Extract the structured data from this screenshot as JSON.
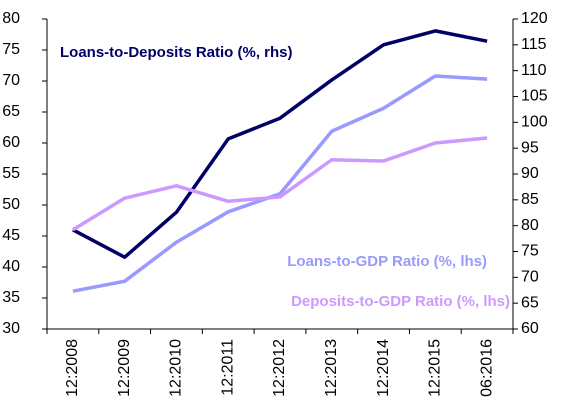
{
  "chart_data": {
    "type": "line",
    "categories": [
      "12:2008",
      "12:2009",
      "12:2010",
      "12:2011",
      "12:2012",
      "12:2013",
      "12:2014",
      "12:2015",
      "06:2016"
    ],
    "series": [
      {
        "name": "Loans-to-Deposits Ratio (%, rhs)",
        "color": "#000066",
        "axis": "y2",
        "values": [
          79.2,
          73.9,
          82.6,
          96.8,
          100.8,
          108.2,
          115.0,
          117.7,
          115.7
        ]
      },
      {
        "name": "Loans-to-GDP Ratio (%, lhs)",
        "color": "#9999ff",
        "values": [
          36.1,
          37.7,
          44.0,
          48.9,
          51.8,
          61.9,
          65.6,
          70.8,
          70.3
        ]
      },
      {
        "name": "Deposits-to-GDP Ratio (%, lhs)",
        "color": "#cc99ff",
        "values": [
          46.0,
          51.1,
          53.1,
          50.6,
          51.3,
          57.3,
          57.1,
          60.0,
          60.8
        ]
      }
    ],
    "ylim": [
      30,
      80
    ],
    "yticks": [
      30,
      35,
      40,
      45,
      50,
      55,
      60,
      65,
      70,
      75,
      80
    ],
    "y2lim": [
      60,
      120
    ],
    "y2ticks": [
      60,
      65,
      70,
      75,
      80,
      85,
      90,
      95,
      100,
      105,
      110,
      115,
      120
    ],
    "grid": false
  }
}
